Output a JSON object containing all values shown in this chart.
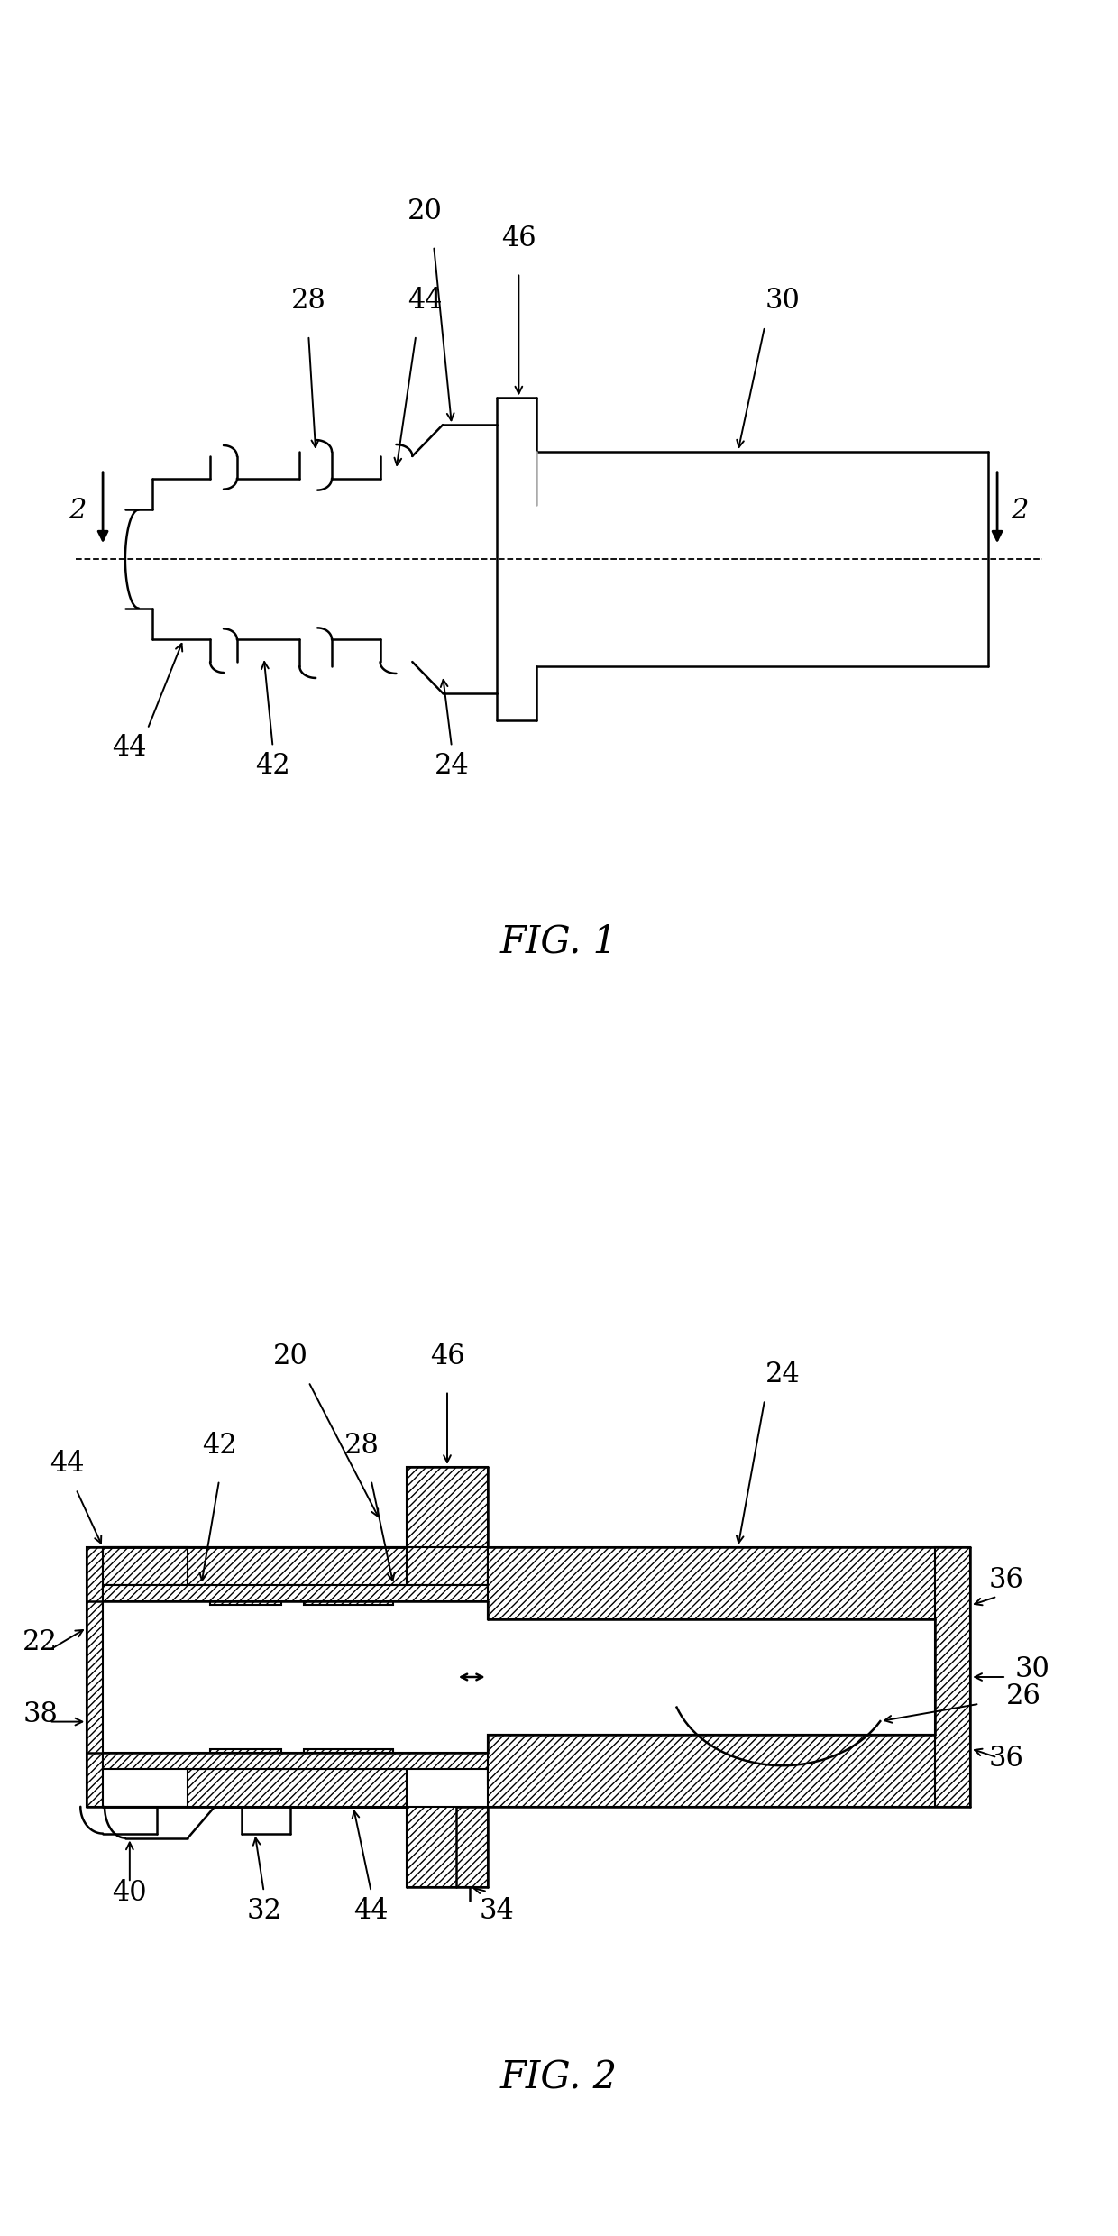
{
  "background_color": "#ffffff",
  "line_color": "#000000",
  "fig1_label": "FIG. 1",
  "fig2_label": "FIG. 2",
  "label_fontsize": 30,
  "annotation_fontsize": 22,
  "linewidth": 1.8,
  "thin_lw": 1.2
}
